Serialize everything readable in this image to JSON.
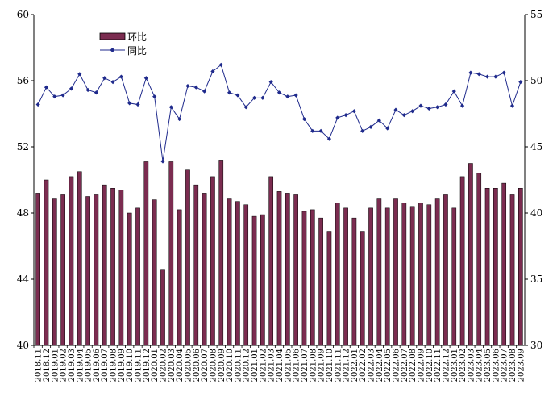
{
  "chart_data": {
    "type": "bar",
    "categories": [
      "2018.11",
      "2018.12",
      "2019.01",
      "2019.02",
      "2019.03",
      "2019.04",
      "2019.05",
      "2019.06",
      "2019.07",
      "2019.08",
      "2019.09",
      "2019.10",
      "2019.11",
      "2019.12",
      "2020.01",
      "2020.02",
      "2020.03",
      "2020.04",
      "2020.05",
      "2020.06",
      "2020.07",
      "2020.08",
      "2020.09",
      "2020.10",
      "2020.11",
      "2020.12",
      "2021.01",
      "2021.02",
      "2021.03",
      "2021.04",
      "2021.05",
      "2021.06",
      "2021.07",
      "2021.08",
      "2021.09",
      "2021.10",
      "2021.11",
      "2021.12",
      "2022.01",
      "2022.02",
      "2022.03",
      "2022.04",
      "2022.05",
      "2022.06",
      "2022.07",
      "2022.08",
      "2022.09",
      "2022.10",
      "2022.11",
      "2022.12",
      "2023.01",
      "2023.02",
      "2023.03",
      "2023.04",
      "2023.05",
      "2023.06",
      "2023.07",
      "2023.08",
      "2023.09"
    ],
    "series": [
      {
        "name": "环比",
        "type": "bar",
        "axis": "left",
        "color": "#7B2C50",
        "values": [
          49.2,
          50.0,
          48.9,
          49.1,
          50.2,
          50.5,
          49.0,
          49.1,
          49.7,
          49.5,
          49.4,
          48.0,
          48.3,
          51.1,
          48.8,
          44.6,
          51.1,
          48.2,
          50.6,
          49.7,
          49.2,
          50.2,
          51.2,
          48.9,
          48.7,
          48.5,
          47.8,
          47.9,
          50.2,
          49.3,
          49.2,
          49.1,
          48.1,
          48.2,
          47.7,
          46.9,
          48.6,
          48.3,
          47.7,
          46.9,
          48.3,
          48.9,
          48.3,
          48.9,
          48.6,
          48.4,
          48.6,
          48.5,
          48.9,
          49.1,
          48.3,
          50.2,
          51.0,
          50.4,
          49.5,
          49.5,
          49.8,
          49.1,
          49.5
        ]
      },
      {
        "name": "同比",
        "type": "line",
        "axis": "right",
        "color": "#1F2A8C",
        "values": [
          48.2,
          49.5,
          48.8,
          48.9,
          49.4,
          50.5,
          49.3,
          49.1,
          50.2,
          49.9,
          50.3,
          48.3,
          48.2,
          50.2,
          48.8,
          43.9,
          48.0,
          47.1,
          49.6,
          49.5,
          49.2,
          50.7,
          51.2,
          49.1,
          48.9,
          48.0,
          48.7,
          48.7,
          49.9,
          49.1,
          48.8,
          48.9,
          47.1,
          46.2,
          46.2,
          45.6,
          47.2,
          47.4,
          47.7,
          46.2,
          46.5,
          47.0,
          46.4,
          47.8,
          47.4,
          47.7,
          48.1,
          47.9,
          48.0,
          48.2,
          49.2,
          48.1,
          50.6,
          50.5,
          50.3,
          50.3,
          50.6,
          48.1,
          49.9
        ]
      }
    ],
    "y_left": {
      "min": 40,
      "max": 60,
      "ticks": [
        40,
        44,
        48,
        52,
        56,
        60
      ]
    },
    "y_right": {
      "min": 30,
      "max": 55,
      "ticks": [
        30,
        35,
        40,
        45,
        50,
        55
      ]
    },
    "legend": {
      "position": "top-left",
      "items": [
        "环比",
        "同比"
      ]
    },
    "grid": false,
    "title": "",
    "xlabel": "",
    "ylabel": ""
  }
}
